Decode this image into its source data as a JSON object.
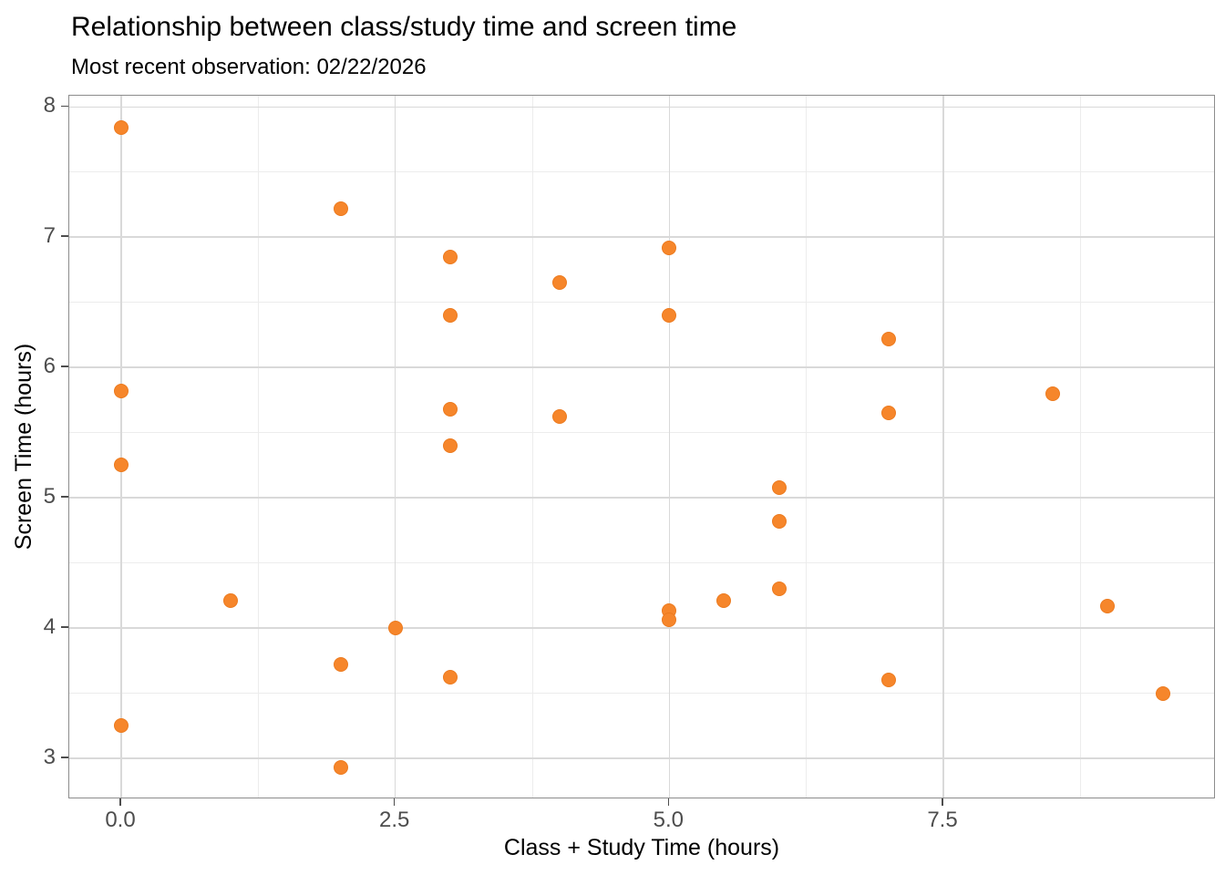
{
  "chart_data": {
    "type": "scatter",
    "title": "Relationship between class/study time and screen time",
    "subtitle": "Most recent observation: 02/22/2026",
    "xlabel": "Class + Study Time (hours)",
    "ylabel": "Screen Time (hours)",
    "grid": true,
    "legend": false,
    "x_axis": {
      "min": -0.474,
      "max": 9.986,
      "major_ticks": [
        0,
        2.5,
        5,
        7.5
      ],
      "minor_ticks": [
        1.25,
        3.75,
        6.25,
        8.75
      ],
      "tick_labels": [
        "0.0",
        "2.5",
        "5.0",
        "7.5"
      ]
    },
    "y_axis": {
      "min": 2.685,
      "max": 8.086,
      "major_ticks": [
        3,
        4,
        5,
        6,
        7,
        8
      ],
      "minor_ticks": [
        3.5,
        4.5,
        5.5,
        6.5,
        7.5
      ],
      "tick_labels": [
        "3",
        "4",
        "5",
        "6",
        "7",
        "8"
      ]
    },
    "points": [
      [
        0,
        7.84
      ],
      [
        2,
        7.22
      ],
      [
        5,
        6.92
      ],
      [
        3,
        6.85
      ],
      [
        4,
        6.65
      ],
      [
        3,
        6.4
      ],
      [
        5,
        6.4
      ],
      [
        7,
        6.22
      ],
      [
        0,
        5.82
      ],
      [
        8.5,
        5.8
      ],
      [
        3,
        5.68
      ],
      [
        7,
        5.65
      ],
      [
        4,
        5.62
      ],
      [
        3,
        5.4
      ],
      [
        0,
        5.25
      ],
      [
        6,
        5.08
      ],
      [
        6,
        4.82
      ],
      [
        6,
        4.3
      ],
      [
        1,
        4.21
      ],
      [
        5.5,
        4.21
      ],
      [
        9,
        4.17
      ],
      [
        5,
        4.13
      ],
      [
        5,
        4.06
      ],
      [
        2.5,
        4.0
      ],
      [
        2,
        3.72
      ],
      [
        3,
        3.62
      ],
      [
        7,
        3.6
      ],
      [
        9.5,
        3.5
      ],
      [
        0,
        3.25
      ],
      [
        2,
        2.93
      ]
    ],
    "colors": {
      "point_fill": "#f6862b",
      "point_stroke": "#ec7a1e",
      "grid_major": "#d9d9d9",
      "grid_minor": "#ececec",
      "panel_border": "#8c8c8c",
      "tick_text": "#4d4d4d",
      "text": "#000000",
      "background": "#ffffff"
    }
  }
}
